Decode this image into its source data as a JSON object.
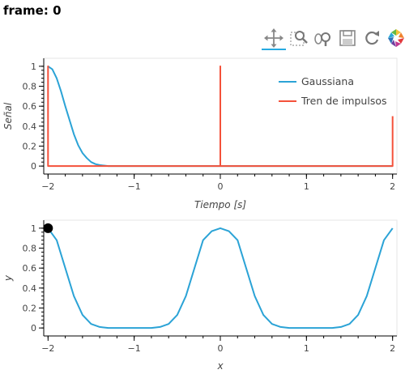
{
  "frame_title": "frame: 0",
  "toolbar": {
    "tools": [
      "pan-tool",
      "box-zoom-tool",
      "wheel-zoom-tool",
      "save-tool",
      "reset-tool",
      "bokeh-logo"
    ]
  },
  "colors": {
    "gaussian": "#2ba3d6",
    "impulse": "#f4513a",
    "marker": "#000000",
    "toolbar_active": "#26aae1"
  },
  "chart_data": [
    {
      "type": "line",
      "xlabel": "Tiempo [s]",
      "ylabel": "Señal",
      "xlim": [
        -2.05,
        2.05
      ],
      "ylim": [
        -0.08,
        1.08
      ],
      "x_ticks": [
        -2,
        -1,
        0,
        1,
        2
      ],
      "x_tick_labels": [
        "−2",
        "−1",
        "0",
        "1",
        "2"
      ],
      "y_ticks": [
        0,
        0.2,
        0.4,
        0.6,
        0.8,
        1
      ],
      "y_tick_labels": [
        "0",
        "0.2",
        "0.4",
        "0.6",
        "0.8",
        "1"
      ],
      "legend_position": "top-right",
      "series": [
        {
          "name": "Gaussiana",
          "x": [
            -2.0,
            -1.95,
            -1.9,
            -1.85,
            -1.8,
            -1.75,
            -1.7,
            -1.65,
            -1.6,
            -1.55,
            -1.5,
            -1.45,
            -1.4,
            -1.35,
            -1.3,
            -1.2,
            -1.0,
            0.0,
            1.0,
            2.0
          ],
          "y": [
            1.0,
            0.97,
            0.88,
            0.75,
            0.6,
            0.46,
            0.32,
            0.21,
            0.13,
            0.08,
            0.04,
            0.02,
            0.01,
            0.005,
            0.0,
            0.0,
            0.0,
            0.0,
            0.0,
            0.0
          ]
        },
        {
          "name": "Tren de impulsos",
          "x": [
            -2.0,
            -2.0,
            -2.0,
            0.0,
            0.0,
            0.0,
            2.0,
            2.0
          ],
          "y": [
            0.0,
            1.0,
            0.0,
            0.0,
            1.0,
            0.0,
            0.0,
            0.5
          ]
        }
      ]
    },
    {
      "type": "line",
      "xlabel": "x",
      "ylabel": "y",
      "xlim": [
        -2.05,
        2.05
      ],
      "ylim": [
        -0.08,
        1.08
      ],
      "x_ticks": [
        -2,
        -1,
        0,
        1,
        2
      ],
      "x_tick_labels": [
        "−2",
        "−1",
        "0",
        "1",
        "2"
      ],
      "y_ticks": [
        0,
        0.2,
        0.4,
        0.6,
        0.8,
        1
      ],
      "y_tick_labels": [
        "0",
        "0.2",
        "0.4",
        "0.6",
        "0.8",
        "1"
      ],
      "series": [
        {
          "x": [
            -2.0,
            -1.9,
            -1.8,
            -1.7,
            -1.6,
            -1.5,
            -1.4,
            -1.3,
            -1.2,
            -1.0,
            -0.8,
            -0.7,
            -0.6,
            -0.5,
            -0.4,
            -0.3,
            -0.2,
            -0.1,
            0.0,
            0.1,
            0.2,
            0.3,
            0.4,
            0.5,
            0.6,
            0.7,
            0.8,
            1.0,
            1.2,
            1.3,
            1.4,
            1.5,
            1.6,
            1.7,
            1.8,
            1.9,
            2.0
          ],
          "y": [
            1.0,
            0.88,
            0.6,
            0.32,
            0.13,
            0.04,
            0.01,
            0.0,
            0.0,
            0.0,
            0.0,
            0.01,
            0.04,
            0.13,
            0.32,
            0.6,
            0.88,
            0.97,
            1.0,
            0.97,
            0.88,
            0.6,
            0.32,
            0.13,
            0.04,
            0.01,
            0.0,
            0.0,
            0.0,
            0.0,
            0.01,
            0.04,
            0.13,
            0.32,
            0.6,
            0.88,
            1.0
          ]
        }
      ],
      "marker": {
        "x": -2.0,
        "y": 1.0
      }
    }
  ]
}
